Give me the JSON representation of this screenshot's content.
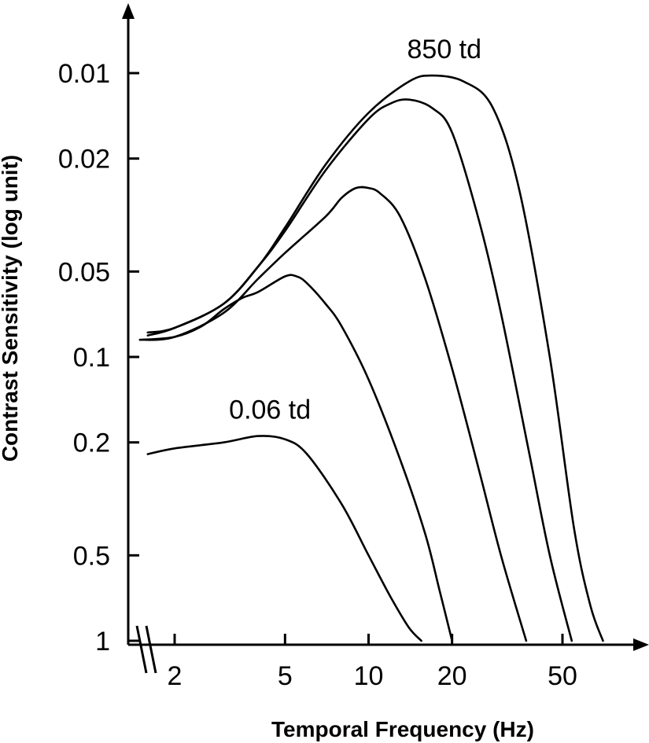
{
  "chart_data": {
    "type": "line",
    "title": "",
    "xlabel": "Temporal Frequency (Hz)",
    "ylabel": "Contrast Sensitivity (log unit)",
    "x_scale": "log",
    "y_scale": "log",
    "y_inverted": true,
    "x_axis_break": true,
    "grid": false,
    "x_ticks": [
      2,
      5,
      10,
      20,
      50
    ],
    "x_tick_labels": [
      "2",
      "5",
      "10",
      "20",
      "50"
    ],
    "y_ticks": [
      0.01,
      0.02,
      0.05,
      0.1,
      0.2,
      0.5,
      1
    ],
    "y_tick_labels": [
      "0.01",
      "0.02",
      "0.05",
      "0.1",
      "0.2",
      "0.5",
      "1"
    ],
    "series": [
      {
        "name": "850 td",
        "x": [
          1.6,
          2,
          3,
          4,
          5,
          7,
          10,
          14,
          17,
          22,
          28,
          35,
          45,
          55,
          63,
          70
        ],
        "y": [
          0.084,
          0.079,
          0.065,
          0.048,
          0.035,
          0.021,
          0.0138,
          0.0107,
          0.0102,
          0.0107,
          0.0132,
          0.026,
          0.1,
          0.4,
          0.75,
          1.0
        ]
      },
      {
        "x": [
          1.6,
          2,
          3,
          4,
          5,
          7,
          10,
          12,
          14,
          17,
          20,
          25,
          30,
          38,
          45,
          54
        ],
        "y": [
          0.082,
          0.079,
          0.065,
          0.048,
          0.036,
          0.022,
          0.0145,
          0.0128,
          0.0124,
          0.0133,
          0.0162,
          0.033,
          0.07,
          0.22,
          0.5,
          1.0
        ]
      },
      {
        "x": [
          1.5,
          2,
          3,
          4,
          5,
          7,
          8,
          9,
          10,
          11,
          13,
          16,
          20,
          25,
          30,
          37
        ],
        "y": [
          0.087,
          0.085,
          0.07,
          0.053,
          0.043,
          0.032,
          0.0275,
          0.0254,
          0.0254,
          0.0265,
          0.032,
          0.053,
          0.11,
          0.25,
          0.5,
          1.0
        ]
      },
      {
        "x": [
          1.5,
          2,
          2.5,
          3,
          3.5,
          4,
          5,
          5.5,
          6,
          7,
          8,
          10,
          13,
          16,
          18,
          20
        ],
        "y": [
          0.087,
          0.085,
          0.078,
          0.068,
          0.062,
          0.059,
          0.052,
          0.052,
          0.055,
          0.065,
          0.078,
          0.12,
          0.23,
          0.42,
          0.66,
          1.0
        ]
      },
      {
        "name": "0.06 td",
        "x": [
          1.6,
          2,
          3,
          4,
          5,
          6,
          8,
          10,
          12,
          14,
          15.5
        ],
        "y": [
          0.22,
          0.21,
          0.2,
          0.19,
          0.195,
          0.22,
          0.33,
          0.5,
          0.7,
          0.9,
          1.0
        ]
      }
    ],
    "annotations": [
      {
        "text": "850 td",
        "series": 0
      },
      {
        "text": "0.06 td",
        "series": 4
      }
    ]
  }
}
